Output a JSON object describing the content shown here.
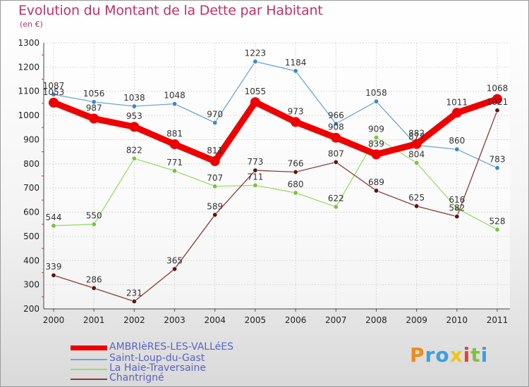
{
  "chart_data": {
    "type": "line",
    "title": "Evolution du Montant de la Dette par Habitant",
    "subtitle": "(en €)",
    "xlabel": "",
    "ylabel": "",
    "categories": [
      "2000",
      "2001",
      "2002",
      "2003",
      "2004",
      "2005",
      "2006",
      "2007",
      "2008",
      "2009",
      "2010",
      "2011"
    ],
    "ylim": [
      200,
      1300
    ],
    "yticks": [
      200,
      300,
      400,
      500,
      600,
      700,
      800,
      900,
      1000,
      1100,
      1200,
      1300
    ],
    "grid": true,
    "legend_position": "bottom-left",
    "series": [
      {
        "name": "AMBRIèRES-LES-VALLéES",
        "color": "#ee0000",
        "emphasis": true,
        "values": [
          1053,
          987,
          953,
          881,
          811,
          1055,
          973,
          908,
          839,
          882,
          1011,
          1068
        ]
      },
      {
        "name": "Saint-Loup-du-Gast",
        "color": "#6aa6d4",
        "marker": "#3d87c6",
        "emphasis": false,
        "values": [
          1087,
          1056,
          1038,
          1048,
          970,
          1223,
          1184,
          966,
          1058,
          877,
          860,
          783
        ]
      },
      {
        "name": "La Haie-Traversaine",
        "color": "#99dd66",
        "marker": "#7cc23e",
        "emphasis": false,
        "values": [
          544,
          550,
          822,
          771,
          707,
          711,
          680,
          622,
          909,
          804,
          616,
          528
        ]
      },
      {
        "name": "Chantrigné",
        "color": "#8b3a3a",
        "marker": "#5e1414",
        "emphasis": false,
        "values": [
          339,
          286,
          231,
          365,
          589,
          773,
          766,
          807,
          689,
          625,
          582,
          1021
        ]
      }
    ]
  },
  "logo": {
    "letters": [
      "P",
      "r",
      "o",
      "x",
      "i",
      "t",
      "i"
    ],
    "colors": [
      "#f08a1c",
      "#3aa0dc",
      "#3aa0dc",
      "#f0c418",
      "#e8403a",
      "#7cc23e",
      "#3aa0dc"
    ]
  }
}
